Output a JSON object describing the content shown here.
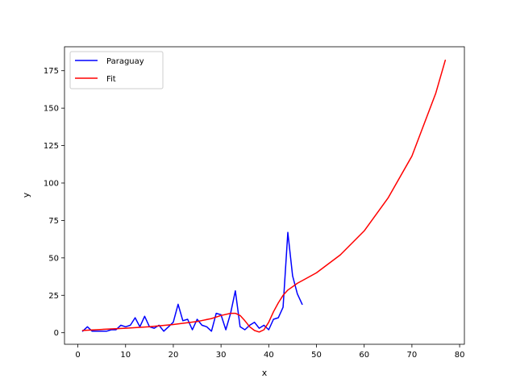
{
  "chart_data": {
    "type": "line",
    "title": "",
    "xlabel": "x",
    "ylabel": "y",
    "xlim": [
      -2.8,
      81.0
    ],
    "ylim": [
      -7.7,
      191.0
    ],
    "xticks": [
      0,
      10,
      20,
      30,
      40,
      50,
      60,
      70,
      80
    ],
    "yticks": [
      0,
      25,
      50,
      75,
      100,
      125,
      150,
      175
    ],
    "grid": false,
    "legend_position": "upper-left",
    "series": [
      {
        "name": "Paraguay",
        "color": "#0000ff",
        "x": [
          1,
          2,
          3,
          4,
          5,
          6,
          7,
          8,
          9,
          10,
          11,
          12,
          13,
          14,
          15,
          16,
          17,
          18,
          19,
          20,
          21,
          22,
          23,
          24,
          25,
          26,
          27,
          28,
          29,
          30,
          31,
          32,
          33,
          34,
          35,
          36,
          37,
          38,
          39,
          40,
          41,
          42,
          43,
          44,
          45,
          46,
          47
        ],
        "y": [
          1,
          4,
          1,
          1,
          1,
          1,
          2,
          2,
          5,
          4,
          5,
          10,
          4,
          11,
          4,
          3,
          5,
          1,
          4,
          7,
          19,
          8,
          9,
          2,
          9,
          5,
          4,
          1,
          13,
          12,
          2,
          13,
          28,
          4,
          2,
          5,
          7,
          3,
          5,
          2,
          9,
          10,
          17,
          67,
          38,
          26,
          19
        ]
      },
      {
        "name": "Fit",
        "color": "#ff0000",
        "x": [
          1,
          5,
          10,
          15,
          20,
          25,
          28,
          30,
          32,
          33,
          34,
          35,
          36,
          37,
          38,
          39,
          40,
          41,
          42,
          43,
          44,
          46,
          48,
          50,
          55,
          60,
          65,
          70,
          75,
          77
        ],
        "y": [
          1.5,
          2.2,
          3,
          4,
          5.5,
          7.5,
          9.5,
          11.5,
          13,
          13,
          11.5,
          8,
          4,
          1.5,
          0.5,
          2,
          7,
          14,
          20,
          25,
          28.5,
          33,
          36.5,
          40,
          52,
          68,
          90,
          118,
          160,
          182
        ]
      }
    ]
  }
}
